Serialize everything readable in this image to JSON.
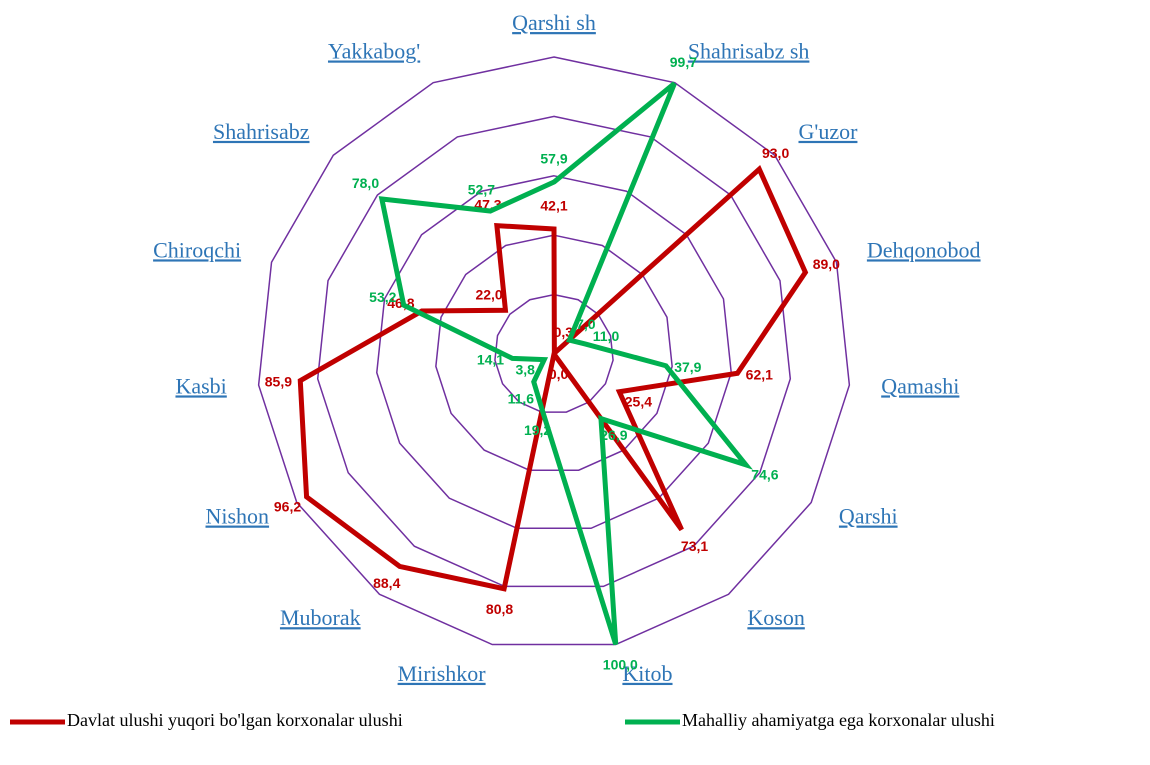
{
  "chart_data": {
    "type": "radar",
    "categories": [
      "Qarshi sh",
      "Shahrisabz sh",
      "G'uzor",
      "Dehqonobod",
      "Qamashi",
      "Qarshi",
      "Koson",
      "Kitob",
      "Mirishkor",
      "Muborak",
      "Nishon",
      "Kasbi",
      "Chiroqchi",
      "Shahrisabz",
      "Yakkabog'"
    ],
    "series": [
      {
        "name": "Davlat ulushi yuqori bo'lgan korxonalar ulushi",
        "color": "#c00000",
        "values": [
          42.1,
          0.3,
          93.0,
          89.0,
          62.1,
          25.4,
          73.1,
          0.0,
          80.8,
          88.4,
          96.2,
          85.9,
          46.8,
          22.0,
          47.3
        ],
        "value_labels": [
          "42,1",
          "0,3",
          "93,0",
          "89,0",
          "62,1",
          "25,4",
          "73,1",
          "0,0",
          "80,8",
          "88,4",
          "96,2",
          "85,9",
          "46,8",
          "22,0",
          "47,3"
        ]
      },
      {
        "name": "Mahalliy ahamiyatga ega korxonalar ulushi",
        "color": "#00b050",
        "values": [
          57.9,
          99.7,
          7.0,
          11.0,
          37.9,
          74.6,
          26.9,
          100.0,
          19.2,
          11.6,
          3.8,
          14.1,
          53.2,
          78.0,
          52.7
        ],
        "value_labels": [
          "57,9",
          "99,7",
          "7,0",
          "11,0",
          "37,9",
          "74,6",
          "26,9",
          "100,0",
          "19,2",
          "11,6",
          "3,8",
          "14,1",
          "53,2",
          "78,0",
          "52,7"
        ]
      }
    ],
    "ylim": [
      0,
      100
    ],
    "yticks": [
      0,
      20,
      40,
      60,
      80,
      100
    ],
    "grid": true,
    "grid_color": "#7030a0",
    "legend": "bottom"
  }
}
